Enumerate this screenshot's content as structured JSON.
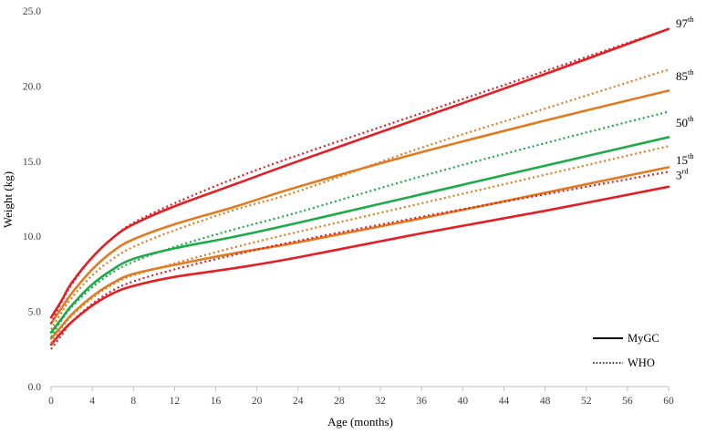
{
  "chart_data": {
    "type": "line",
    "xlabel": "Age (months)",
    "ylabel": "Weight (kg)",
    "xlim": [
      0,
      60
    ],
    "ylim": [
      0,
      25
    ],
    "x_ticks": [
      "0",
      "4",
      "8",
      "12",
      "16",
      "20",
      "24",
      "28",
      "32",
      "36",
      "40",
      "44",
      "48",
      "52",
      "56",
      "60"
    ],
    "y_ticks": [
      "0.0",
      "5.0",
      "10.0",
      "15.0",
      "20.0",
      "25.0"
    ],
    "x": [
      0,
      1,
      2,
      4,
      6,
      8,
      12,
      18,
      24,
      36,
      48,
      60
    ],
    "series": [
      {
        "name": "",
        "style": "solid",
        "color": "#e31e24",
        "values": [
          4.6,
          5.7,
          6.9,
          8.6,
          9.9,
          10.8,
          12.0,
          13.5,
          15.0,
          17.9,
          20.8,
          23.8
        ]
      },
      {
        "name": "",
        "style": "solid",
        "color": "#e07b22",
        "values": [
          4.2,
          5.2,
          6.2,
          7.8,
          9.0,
          9.8,
          10.8,
          12.0,
          13.3,
          15.6,
          17.7,
          19.7
        ]
      },
      {
        "name": "",
        "style": "solid",
        "color": "#1faa4a",
        "values": [
          3.6,
          4.5,
          5.4,
          6.8,
          7.8,
          8.5,
          9.2,
          10.0,
          10.9,
          12.8,
          14.7,
          16.6
        ]
      },
      {
        "name": "",
        "style": "solid",
        "color": "#e07b22",
        "values": [
          3.2,
          4.0,
          4.8,
          6.0,
          6.9,
          7.5,
          8.1,
          8.9,
          9.6,
          11.2,
          12.9,
          14.6
        ]
      },
      {
        "name": "",
        "style": "solid",
        "color": "#e31e24",
        "values": [
          2.8,
          3.6,
          4.3,
          5.4,
          6.2,
          6.7,
          7.3,
          7.9,
          8.6,
          10.2,
          11.7,
          13.3
        ]
      },
      {
        "name": "",
        "style": "dotted",
        "color": "#e31e24",
        "values": [
          4.2,
          5.6,
          6.8,
          8.6,
          9.9,
          10.9,
          12.2,
          13.9,
          15.4,
          18.2,
          21.0,
          23.8
        ]
      },
      {
        "name": "",
        "style": "dotted",
        "color": "#e07b22",
        "values": [
          3.8,
          4.9,
          5.9,
          7.4,
          8.5,
          9.3,
          10.4,
          11.8,
          13.0,
          15.9,
          18.5,
          21.1
        ]
      },
      {
        "name": "",
        "style": "dotted",
        "color": "#1faa4a",
        "values": [
          3.3,
          4.4,
          5.3,
          6.6,
          7.6,
          8.3,
          9.3,
          10.5,
          11.6,
          14.0,
          16.2,
          18.3
        ]
      },
      {
        "name": "",
        "style": "dotted",
        "color": "#e07b22",
        "values": [
          2.9,
          3.9,
          4.7,
          5.9,
          6.8,
          7.4,
          8.2,
          9.3,
          10.3,
          12.2,
          14.1,
          16.0
        ]
      },
      {
        "name": "",
        "style": "dotted",
        "color": "#e31e24",
        "values": [
          2.5,
          3.4,
          4.3,
          5.5,
          6.4,
          7.0,
          7.8,
          8.8,
          9.7,
          11.3,
          12.8,
          14.3
        ]
      }
    ],
    "percentile_labels": [
      {
        "num": "97",
        "sup": "th",
        "y": 24.2
      },
      {
        "num": "85",
        "sup": "th",
        "y": 20.7
      },
      {
        "num": "50",
        "sup": "th",
        "y": 17.6
      },
      {
        "num": "15",
        "sup": "th",
        "y": 15.1
      },
      {
        "num": "3",
        "sup": "rd",
        "y": 14.1
      }
    ],
    "legend": {
      "position": "bottom-right",
      "items": [
        {
          "label": "MyGC",
          "style": "solid"
        },
        {
          "label": "WHO",
          "style": "dotted"
        }
      ]
    },
    "grid": false
  }
}
